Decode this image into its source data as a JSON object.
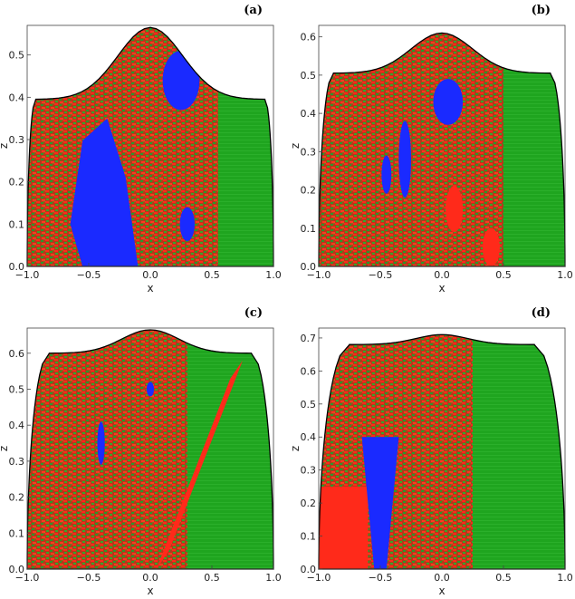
{
  "colors": {
    "red": "#ff2a1a",
    "green": "#1fa51f",
    "blue": "#1a2aff",
    "yellow": "#f0e060",
    "boundary": "#000000"
  },
  "chart_data": [
    {
      "type": "heatmap",
      "panel_label": "(a)",
      "xlabel": "x",
      "ylabel": "z",
      "xlim": [
        -1.0,
        1.0
      ],
      "ylim": [
        0.0,
        0.57
      ],
      "xticks": [
        "−1.0",
        "−0.5",
        "0.0",
        "0.5",
        "1.0"
      ],
      "yticks": [
        "0.0",
        "0.1",
        "0.2",
        "0.3",
        "0.4",
        "0.5"
      ],
      "ytick_values": [
        0.0,
        0.1,
        0.2,
        0.3,
        0.4,
        0.5
      ],
      "boundary": {
        "x_left": -0.93,
        "x_right": 0.93,
        "z_edge": 0.395,
        "z_peak": 0.565
      },
      "regions": [
        {
          "color": "green",
          "shape": "green-right",
          "x_from": 0.55
        },
        {
          "color": "blue",
          "shape": "blue-band",
          "x": [
            -0.7,
            -0.55,
            -0.35,
            -0.2,
            -0.1
          ],
          "z_top": 0.35
        },
        {
          "color": "blue",
          "shape": "blob",
          "cx": 0.25,
          "cz": 0.44,
          "rx": 0.15,
          "rz": 0.07
        },
        {
          "color": "blue",
          "shape": "blob",
          "cx": 0.3,
          "cz": 0.1,
          "rx": 0.06,
          "rz": 0.04
        }
      ]
    },
    {
      "type": "heatmap",
      "panel_label": "(b)",
      "xlabel": "x",
      "ylabel": "z",
      "xlim": [
        -1.0,
        1.0
      ],
      "ylim": [
        0.0,
        0.63
      ],
      "xticks": [
        "−1.0",
        "−0.5",
        "0.0",
        "0.5",
        "1.0"
      ],
      "yticks": [
        "0.0",
        "0.1",
        "0.2",
        "0.3",
        "0.4",
        "0.5",
        "0.6"
      ],
      "ytick_values": [
        0.0,
        0.1,
        0.2,
        0.3,
        0.4,
        0.5,
        0.6
      ],
      "boundary": {
        "x_left": -0.88,
        "x_right": 0.88,
        "z_edge": 0.505,
        "z_peak": 0.61
      },
      "regions": [
        {
          "color": "green",
          "shape": "green-right",
          "x_from": 0.5
        },
        {
          "color": "blue",
          "shape": "blob",
          "cx": 0.05,
          "cz": 0.43,
          "rx": 0.12,
          "rz": 0.06
        },
        {
          "color": "blue",
          "shape": "blob",
          "cx": -0.3,
          "cz": 0.28,
          "rx": 0.05,
          "rz": 0.1
        },
        {
          "color": "blue",
          "shape": "blob",
          "cx": -0.45,
          "cz": 0.24,
          "rx": 0.04,
          "rz": 0.05
        },
        {
          "color": "red",
          "shape": "blob",
          "cx": 0.1,
          "cz": 0.15,
          "rx": 0.07,
          "rz": 0.06
        },
        {
          "color": "red",
          "shape": "blob",
          "cx": 0.4,
          "cz": 0.05,
          "rx": 0.07,
          "rz": 0.05
        }
      ]
    },
    {
      "type": "heatmap",
      "panel_label": "(c)",
      "xlabel": "x",
      "ylabel": "z",
      "xlim": [
        -1.0,
        1.0
      ],
      "ylim": [
        0.0,
        0.67
      ],
      "xticks": [
        "−1.0",
        "−0.5",
        "0.0",
        "0.5",
        "1.0"
      ],
      "yticks": [
        "0.0",
        "0.1",
        "0.2",
        "0.3",
        "0.4",
        "0.5",
        "0.6"
      ],
      "ytick_values": [
        0.0,
        0.1,
        0.2,
        0.3,
        0.4,
        0.5,
        0.6
      ],
      "boundary": {
        "x_left": -0.82,
        "x_right": 0.82,
        "z_edge": 0.6,
        "z_peak": 0.665
      },
      "regions": [
        {
          "color": "green",
          "shape": "green-right",
          "x_from": 0.3
        },
        {
          "color": "red",
          "shape": "red-diagonal",
          "x": [
            0.15,
            0.75
          ],
          "z": [
            0.05,
            0.58
          ]
        },
        {
          "color": "blue",
          "shape": "blob",
          "cx": -0.4,
          "cz": 0.35,
          "rx": 0.03,
          "rz": 0.06
        },
        {
          "color": "blue",
          "shape": "blob",
          "cx": 0.0,
          "cz": 0.5,
          "rx": 0.03,
          "rz": 0.02
        }
      ]
    },
    {
      "type": "heatmap",
      "panel_label": "(d)",
      "xlabel": "x",
      "ylabel": "z",
      "xlim": [
        -1.0,
        1.0
      ],
      "ylim": [
        0.0,
        0.73
      ],
      "xticks": [
        "−1.0",
        "−0.5",
        "0.0",
        "0.5",
        "1.0"
      ],
      "yticks": [
        "0.0",
        "0.1",
        "0.2",
        "0.3",
        "0.4",
        "0.5",
        "0.6",
        "0.7"
      ],
      "ytick_values": [
        0.0,
        0.1,
        0.2,
        0.3,
        0.4,
        0.5,
        0.6,
        0.7
      ],
      "boundary": {
        "x_left": -0.75,
        "x_right": 0.75,
        "z_edge": 0.68,
        "z_peak": 0.71
      },
      "regions": [
        {
          "color": "green",
          "shape": "green-right",
          "x_from": 0.25
        },
        {
          "color": "red",
          "shape": "red-left",
          "z_top": 0.25
        },
        {
          "color": "blue",
          "shape": "blue-y",
          "cx": -0.5,
          "z_top": 0.4
        }
      ]
    }
  ]
}
